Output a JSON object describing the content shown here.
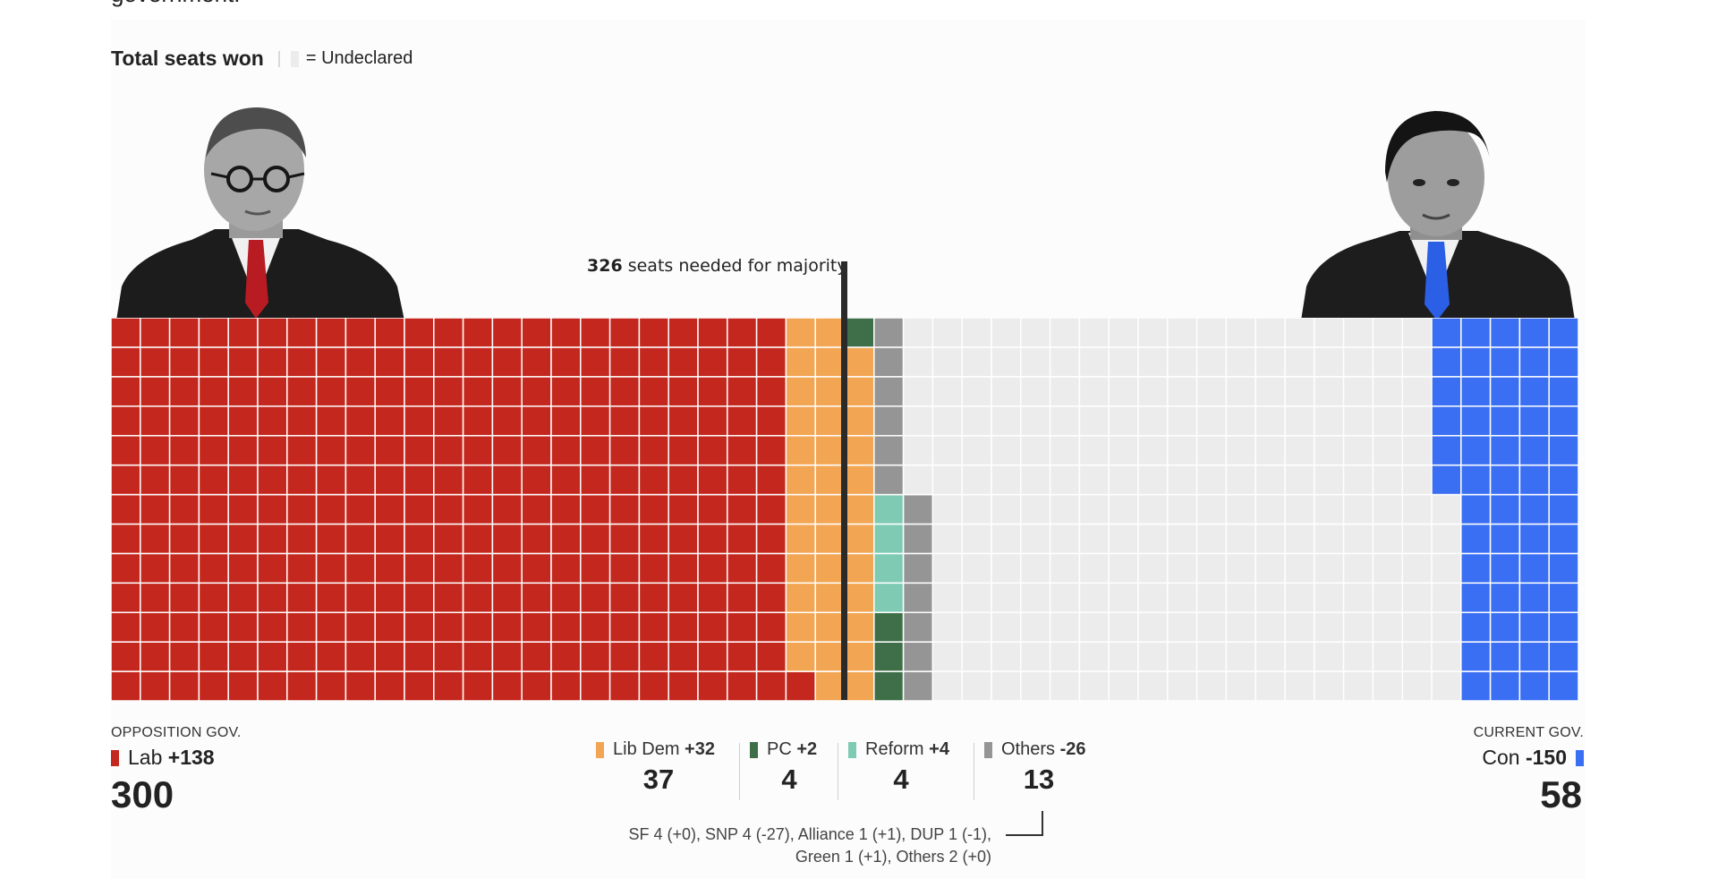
{
  "header": {
    "cut_text": "government.",
    "title": "Total seats won",
    "undeclared_label": "= Undeclared"
  },
  "majority": {
    "seats": "326",
    "label": "seats needed for majority"
  },
  "left_party": {
    "role": "OPPOSITION GOV.",
    "name": "Lab",
    "change": "+138",
    "seats": "300"
  },
  "right_party": {
    "role": "CURRENT GOV.",
    "name": "Con",
    "change": "-150",
    "seats": "58"
  },
  "mid_parties": [
    {
      "name": "Lib Dem",
      "change": "+32",
      "seats": "37",
      "color": "#f2a552"
    },
    {
      "name": "PC",
      "change": "+2",
      "seats": "4",
      "color": "#3e6f48"
    },
    {
      "name": "Reform",
      "change": "+4",
      "seats": "4",
      "color": "#7ecab3"
    },
    {
      "name": "Others",
      "change": "-26",
      "seats": "13",
      "color": "#959595"
    }
  ],
  "others_note": {
    "line1": "SF 4 (+0), SNP 4 (-27), Alliance 1 (+1), DUP 1 (-1),",
    "line2": "Green 1 (+1), Others 2 (+0)"
  },
  "chart_data": {
    "type": "waffle",
    "title": "Total seats won",
    "grid": {
      "columns": 50,
      "rows": 13,
      "cells_per_seat": 1
    },
    "colors": {
      "Lab": "#c3271e",
      "Lib Dem": "#f2a552",
      "PC": "#3e6f48",
      "Reform": "#7ecab3",
      "Others": "#959595",
      "Undeclared": "#ececec",
      "Con": "#3a6ef3"
    },
    "series": [
      {
        "name": "Lab",
        "values": [
          300
        ],
        "delta": 138
      },
      {
        "name": "Lib Dem",
        "values": [
          37
        ],
        "delta": 32
      },
      {
        "name": "PC",
        "values": [
          4
        ],
        "delta": 2
      },
      {
        "name": "Reform",
        "values": [
          4
        ],
        "delta": 4
      },
      {
        "name": "Others",
        "values": [
          13
        ],
        "delta": -26
      },
      {
        "name": "Undeclared",
        "values": [
          234
        ]
      },
      {
        "name": "Con",
        "values": [
          58
        ],
        "delta": -150
      }
    ],
    "fill_order_left": [
      "Lab",
      "Lib Dem",
      "PC",
      "Reform",
      "Others"
    ],
    "fill_order_right": [
      "Con"
    ],
    "majority_line": 326
  }
}
